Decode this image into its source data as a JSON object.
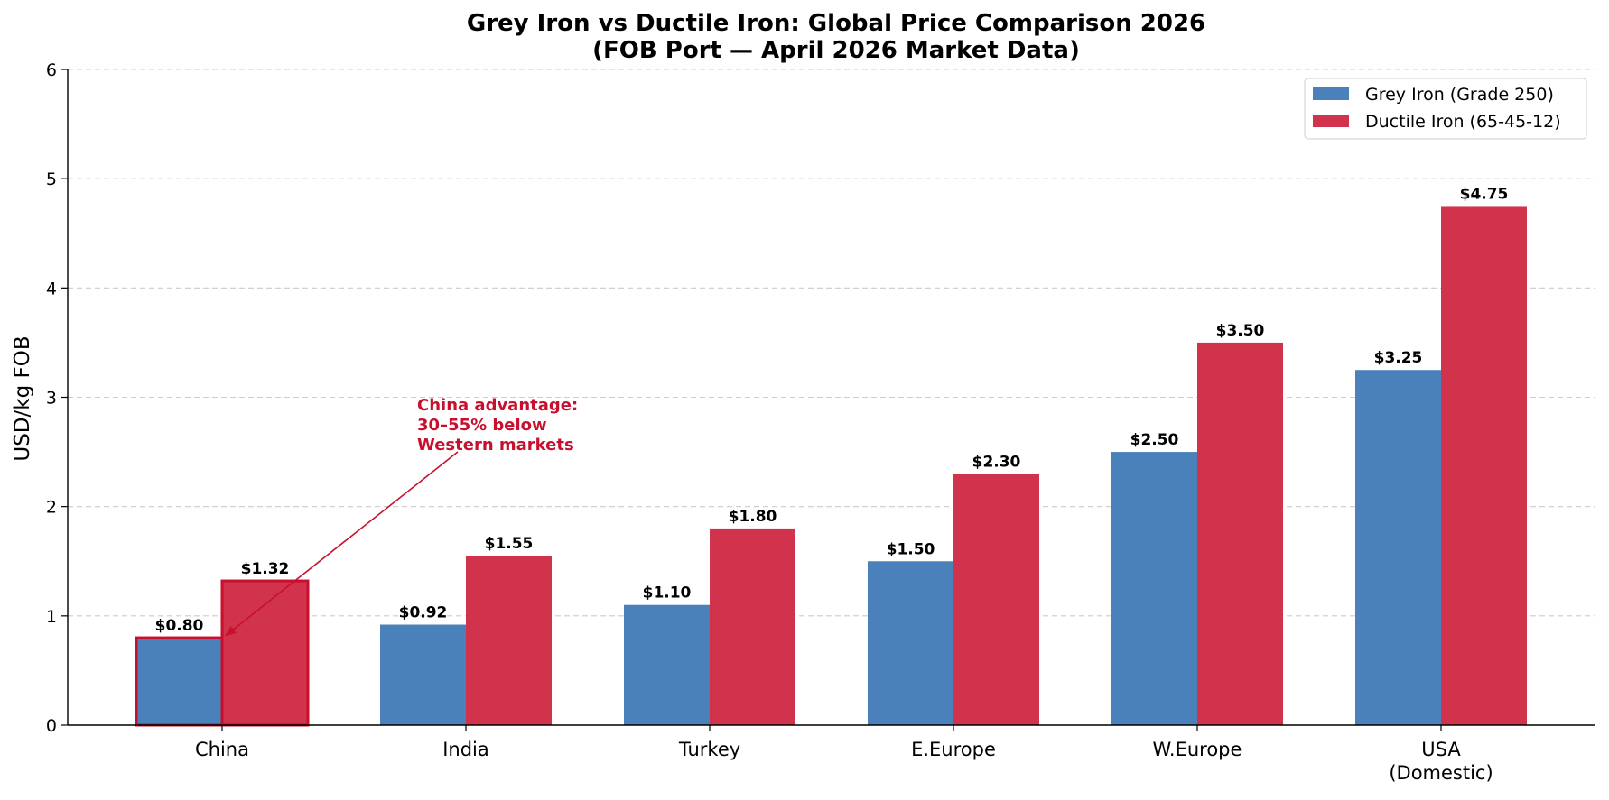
{
  "chart_data": {
    "type": "bar",
    "title": "Grey Iron vs Ductile Iron: Global Price Comparison 2026",
    "subtitle": "(FOB Port — April 2026 Market Data)",
    "xlabel": "",
    "ylabel": "USD/kg FOB",
    "ylim": [
      0,
      6
    ],
    "yticks": [
      0,
      1,
      2,
      3,
      4,
      5,
      6
    ],
    "grid": "y-dashed",
    "legend_position": "top-right",
    "categories": [
      [
        "China"
      ],
      [
        "India"
      ],
      [
        "Turkey"
      ],
      [
        "E.Europe"
      ],
      [
        "W.Europe"
      ],
      [
        "USA",
        "(Domestic)"
      ]
    ],
    "series": [
      {
        "name": "Grey Iron (Grade 250)",
        "color": "#4a81bb",
        "values": [
          0.8,
          0.92,
          1.1,
          1.5,
          2.5,
          3.25
        ],
        "labels": [
          "$0.80",
          "$0.92",
          "$1.10",
          "$1.50",
          "$2.50",
          "$3.25"
        ]
      },
      {
        "name": "Ductile Iron (65-45-12)",
        "color": "#d1324c",
        "values": [
          1.32,
          1.55,
          1.8,
          2.3,
          3.5,
          4.75
        ],
        "labels": [
          "$1.32",
          "$1.55",
          "$1.80",
          "$2.30",
          "$3.50",
          "$4.75"
        ]
      }
    ],
    "highlight_category": 0,
    "highlight_color": "#c8102e",
    "annotation": {
      "lines": [
        "China advantage:",
        "30–55% below",
        "Western markets"
      ],
      "color": "#c8102e",
      "text_x_category": 0.8,
      "text_y": 2.55,
      "target_category": 0,
      "target_value": 0.82
    }
  }
}
